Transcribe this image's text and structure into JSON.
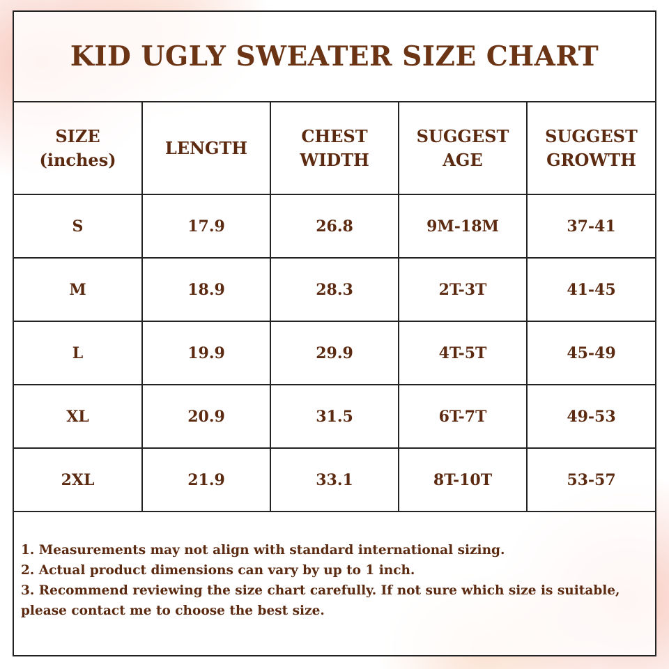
{
  "header": {
    "title": "KID UGLY SWEATER SIZE CHART"
  },
  "table": {
    "columns": [
      "SIZE (inches)",
      "LENGTH",
      "CHEST WIDTH",
      "SUGGEST AGE",
      "SUGGEST GROWTH"
    ],
    "rows": [
      [
        "S",
        "17.9",
        "26.8",
        "9M-18M",
        "37-41"
      ],
      [
        "M",
        "18.9",
        "28.3",
        "2T-3T",
        "41-45"
      ],
      [
        "L",
        "19.9",
        "29.9",
        "4T-5T",
        "45-49"
      ],
      [
        "XL",
        "20.9",
        "31.5",
        "6T-7T",
        "49-53"
      ],
      [
        "2XL",
        "21.9",
        "33.1",
        "8T-10T",
        "53-57"
      ]
    ]
  },
  "notes": [
    "1. Measurements may not align with standard international sizing.",
    "2. Actual product dimensions can vary by up to 1 inch.",
    "3. Recommend reviewing the size chart carefully. If not sure which size is suitable, please contact me to choose the best size."
  ]
}
